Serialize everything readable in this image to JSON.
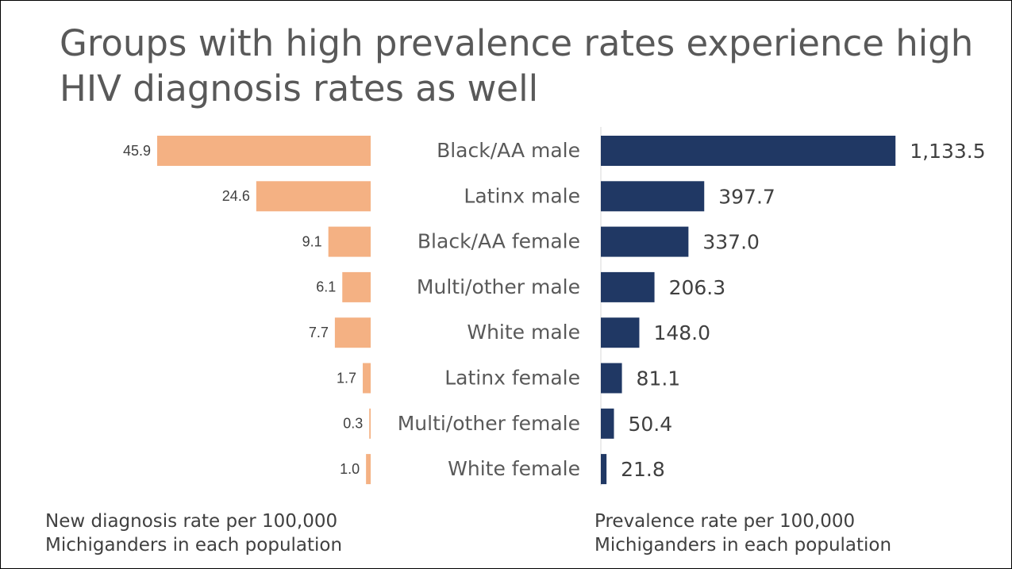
{
  "chart_data": [
    {
      "type": "hbar-left",
      "title": "Groups with high prevalence rates experience high HIV diagnosis rates as well",
      "x_label": "New diagnosis rate per 100,000 Michiganders in each population",
      "categories": [
        "Black/AA male",
        "Latinx male",
        "Black/AA female",
        "Multi/other male",
        "White male",
        "Latinx female",
        "Multi/other female",
        "White female"
      ],
      "values": [
        45.9,
        24.6,
        9.1,
        6.1,
        7.7,
        1.7,
        0.3,
        1.0
      ],
      "value_labels": [
        "45.9",
        "24.6",
        "9.1",
        "6.1",
        "7.7",
        "1.7",
        "0.3",
        "1.0"
      ],
      "color": "#f4b183",
      "xlim": [
        0,
        50
      ]
    },
    {
      "type": "hbar",
      "x_label": "Prevalence rate per 100,000 Michiganders in each population",
      "values": [
        1133.5,
        397.7,
        337.0,
        206.3,
        148.0,
        81.1,
        50.4,
        21.8
      ],
      "value_labels": [
        "1,133.5",
        "397.7",
        "337.0",
        "206.3",
        "148.0",
        "81.1",
        "50.4",
        "21.8"
      ],
      "color": "#203864",
      "xlim": [
        0,
        1200
      ]
    }
  ]
}
